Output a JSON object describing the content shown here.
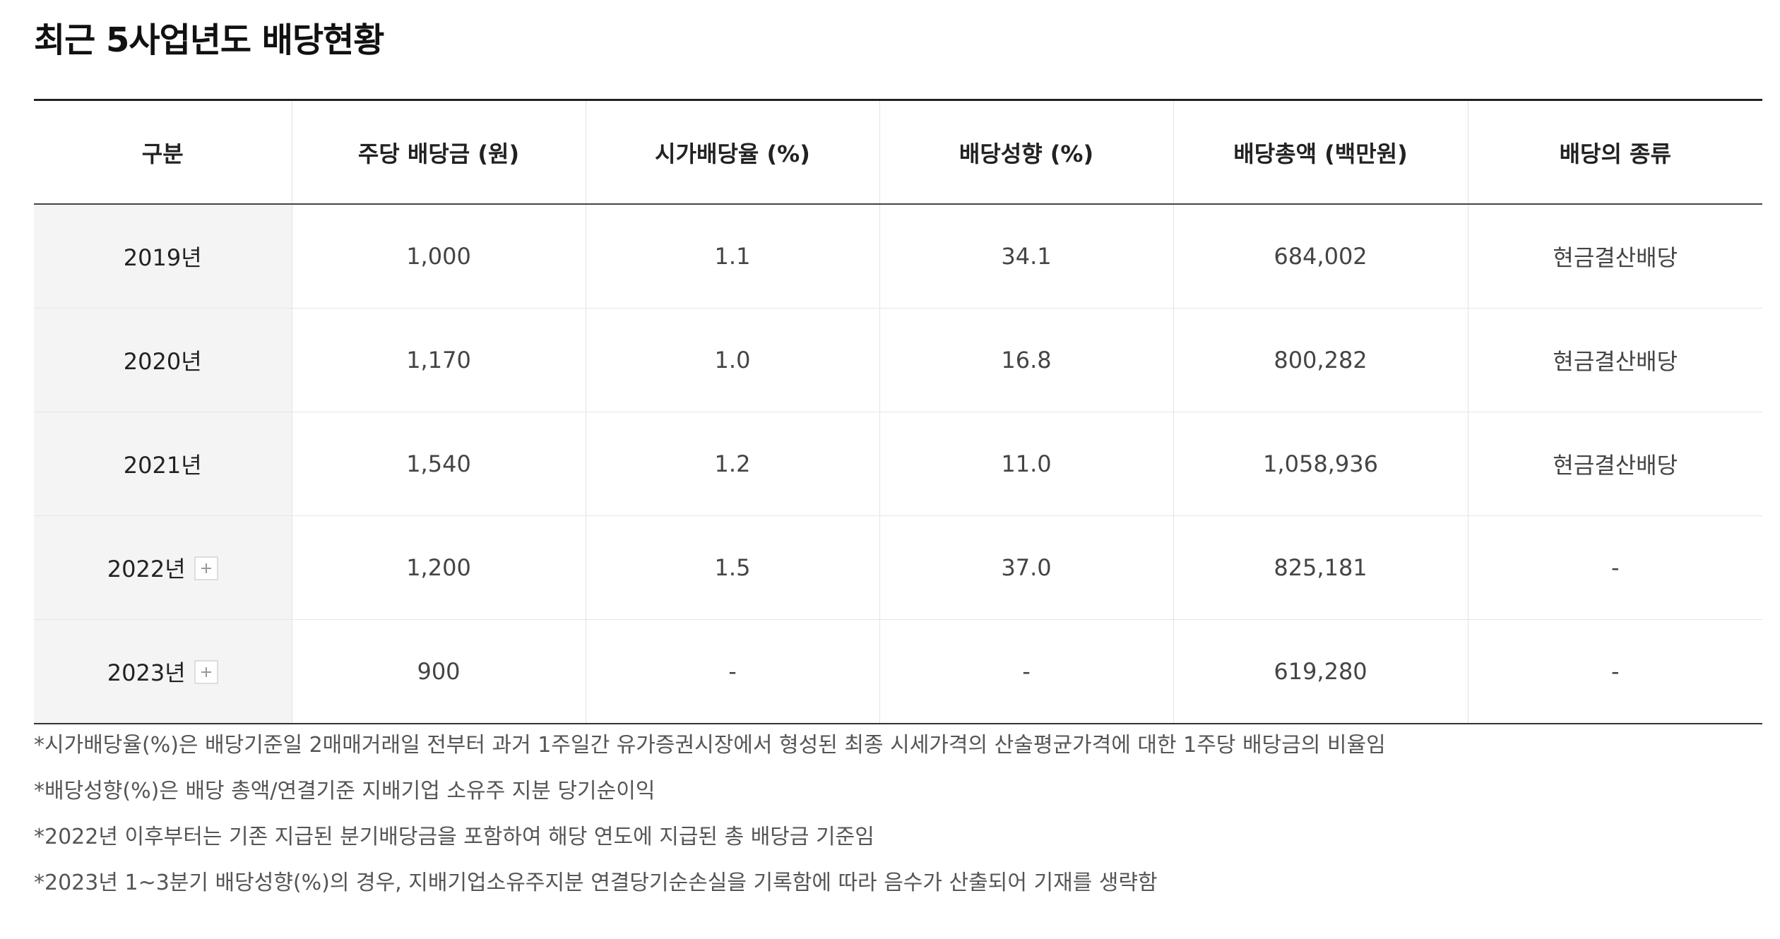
{
  "title": "최근 5사업년도 배당현황",
  "table": {
    "headers": [
      "구분",
      "주당 배당금 (원)",
      "시가배당율 (%)",
      "배당성향 (%)",
      "배당총액 (백만원)",
      "배당의 종류"
    ],
    "rows": [
      {
        "year": "2019년",
        "dps": "1,000",
        "yield": "1.1",
        "payout": "34.1",
        "total": "684,002",
        "type": "현금결산배당",
        "expandable": false
      },
      {
        "year": "2020년",
        "dps": "1,170",
        "yield": "1.0",
        "payout": "16.8",
        "total": "800,282",
        "type": "현금결산배당",
        "expandable": false
      },
      {
        "year": "2021년",
        "dps": "1,540",
        "yield": "1.2",
        "payout": "11.0",
        "total": "1,058,936",
        "type": "현금결산배당",
        "expandable": false
      },
      {
        "year": "2022년",
        "dps": "1,200",
        "yield": "1.5",
        "payout": "37.0",
        "total": "825,181",
        "type": "-",
        "expandable": true
      },
      {
        "year": "2023년",
        "dps": "900",
        "yield": "-",
        "payout": "-",
        "total": "619,280",
        "type": "-",
        "expandable": true
      }
    ]
  },
  "notes": [
    "*시가배당율(%)은 배당기준일 2매매거래일 전부터 과거 1주일간 유가증권시장에서 형성된 최종 시세가격의 산술평균가격에 대한 1주당 배당금의 비율임",
    "*배당성향(%)은 배당 총액/연결기준 지배기업 소유주 지분 당기순이익",
    "*2022년 이후부터는 기존 지급된 분기배당금을 포함하여 해당 연도에 지급된 총 배당금 기준임",
    "*2023년 1~3분기 배당성향(%)의 경우, 지배기업소유주지분 연결당기순손실을 기록함에 따라 음수가 산출되어 기재를 생략함"
  ],
  "icons": {
    "expand": "plus-icon"
  }
}
